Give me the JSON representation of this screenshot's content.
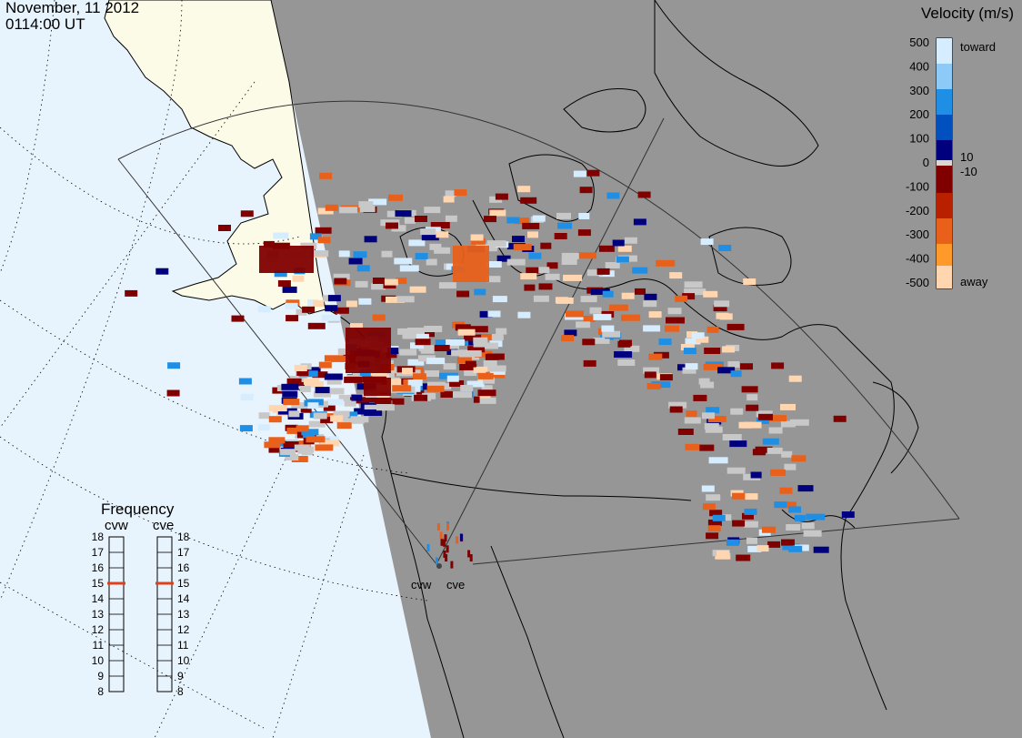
{
  "header": {
    "date": "November, 11 2012",
    "time": "0114:00 UT"
  },
  "velocity_legend": {
    "title": "Velocity (m/s)",
    "ticks": [
      "500",
      "400",
      "300",
      "200",
      "100",
      "0",
      "-100",
      "-200",
      "-300",
      "-400",
      "-500"
    ],
    "toward_label": "toward",
    "away_label": "away",
    "cut_pos_label": "10",
    "cut_neg_label": "-10",
    "colors": {
      "toward_light": "#d6ecff",
      "toward_mid": "#1f8fe6",
      "toward_dark": "#00007f",
      "away_dark": "#800000",
      "away_mid": "#e8601a",
      "away_light": "#ffd6b0",
      "ground_scatter": "#c8c8c8"
    }
  },
  "frequency_panel": {
    "title": "Frequency",
    "radars": [
      {
        "name": "cvw",
        "frequency_mhz": 15
      },
      {
        "name": "cve",
        "frequency_mhz": 15
      }
    ],
    "scale": [
      "18",
      "17",
      "16",
      "15",
      "14",
      "13",
      "12",
      "11",
      "10",
      "9",
      "8"
    ]
  },
  "radar_sites": [
    {
      "name": "cvw"
    },
    {
      "name": "cve"
    }
  ],
  "map": {
    "land_color": "#969696",
    "ocean_color": "#e8f4fd",
    "daylight_land_color": "#fcfbe8",
    "night_overlay": true
  }
}
